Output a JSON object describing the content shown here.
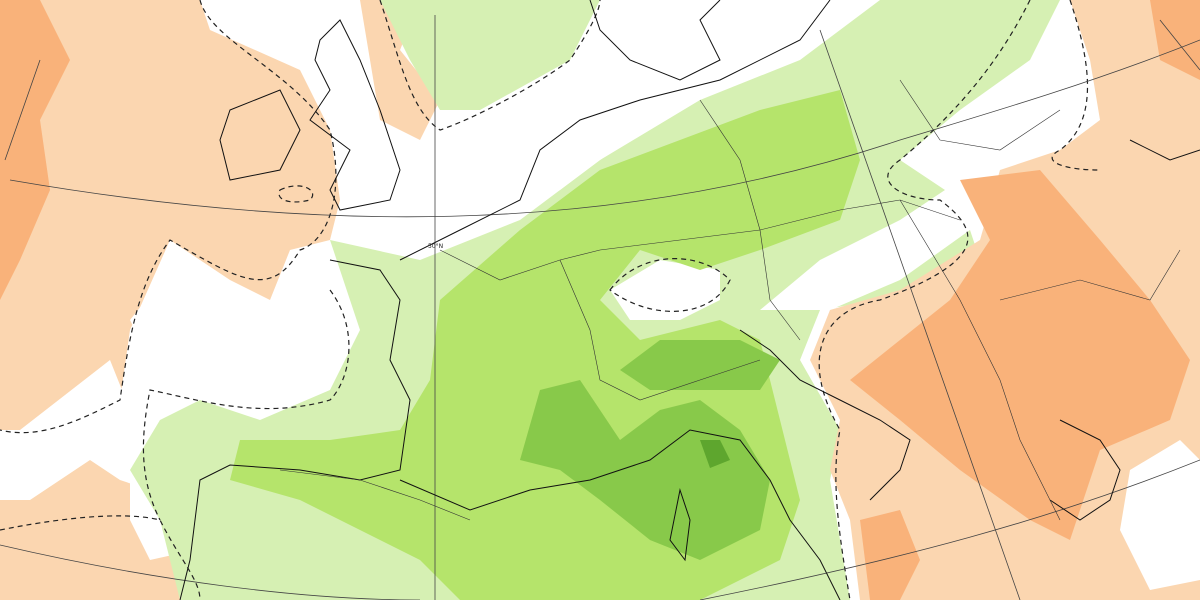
{
  "map": {
    "latitude_label": "50°N"
  }
}
